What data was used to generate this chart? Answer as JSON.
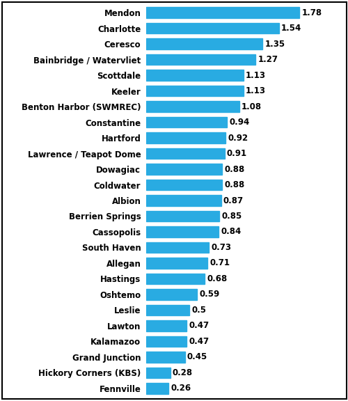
{
  "categories": [
    "Mendon",
    "Charlotte",
    "Ceresco",
    "Bainbridge / Watervliet",
    "Scottdale",
    "Keeler",
    "Benton Harbor (SWMREC)",
    "Constantine",
    "Hartford",
    "Lawrence / Teapot Dome",
    "Dowagiac",
    "Coldwater",
    "Albion",
    "Berrien Springs",
    "Cassopolis",
    "South Haven",
    "Allegan",
    "Hastings",
    "Oshtemo",
    "Leslie",
    "Lawton",
    "Kalamazoo",
    "Grand Junction",
    "Hickory Corners (KBS)",
    "Fennville"
  ],
  "values": [
    1.78,
    1.54,
    1.35,
    1.27,
    1.13,
    1.13,
    1.08,
    0.94,
    0.92,
    0.91,
    0.88,
    0.88,
    0.87,
    0.85,
    0.84,
    0.73,
    0.71,
    0.68,
    0.59,
    0.5,
    0.47,
    0.47,
    0.45,
    0.28,
    0.26
  ],
  "bar_color": "#29ABE2",
  "label_color": "#000000",
  "value_color": "#000000",
  "background_color": "#FFFFFF",
  "bar_height": 0.7,
  "xlim": [
    0,
    2.1
  ],
  "label_fontsize": 8.5,
  "value_fontsize": 8.5,
  "label_fontweight": "bold",
  "value_fontweight": "bold",
  "border_color": "#000000",
  "border_linewidth": 1.5
}
